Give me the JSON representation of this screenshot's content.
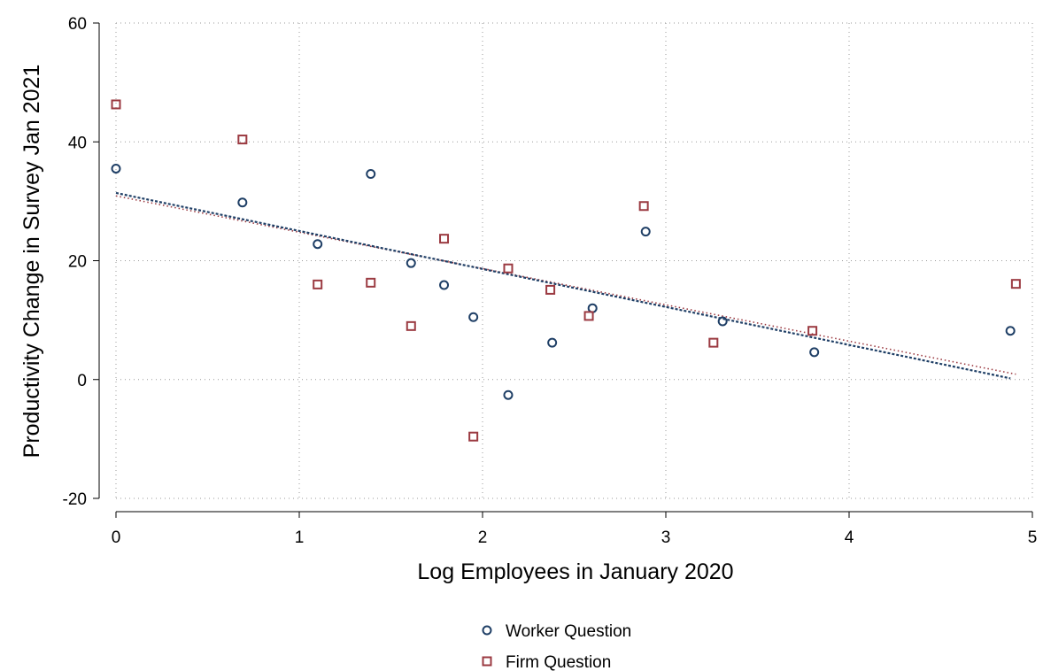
{
  "chart_data": {
    "type": "scatter",
    "title": "",
    "xlabel": "Log Employees in January 2020",
    "ylabel": "Productivity Change in Survey Jan 2021",
    "xlim": [
      0,
      5
    ],
    "ylim": [
      -20,
      60
    ],
    "xticks": [
      "0",
      "1",
      "2",
      "3",
      "4",
      "5"
    ],
    "yticks": [
      "-20",
      "0",
      "20",
      "40",
      "60"
    ],
    "grid": true,
    "legend_position": "bottom-center",
    "series": [
      {
        "name": "Worker Question",
        "marker": "circle",
        "color": "#1f3f66",
        "points": [
          {
            "x": 0.0,
            "y": 35.5
          },
          {
            "x": 0.69,
            "y": 29.8
          },
          {
            "x": 1.1,
            "y": 22.8
          },
          {
            "x": 1.39,
            "y": 34.6
          },
          {
            "x": 1.61,
            "y": 19.6
          },
          {
            "x": 1.79,
            "y": 15.9
          },
          {
            "x": 1.95,
            "y": 10.5
          },
          {
            "x": 2.14,
            "y": -2.6
          },
          {
            "x": 2.38,
            "y": 6.2
          },
          {
            "x": 2.6,
            "y": 12.0
          },
          {
            "x": 2.89,
            "y": 24.9
          },
          {
            "x": 3.31,
            "y": 9.8
          },
          {
            "x": 3.81,
            "y": 4.6
          },
          {
            "x": 4.88,
            "y": 8.2
          }
        ],
        "fit": {
          "x": [
            0.0,
            4.88
          ],
          "y": [
            31.4,
            0.2
          ]
        }
      },
      {
        "name": "Firm Question",
        "marker": "square",
        "color": "#9b3a41",
        "points": [
          {
            "x": 0.0,
            "y": 46.3
          },
          {
            "x": 0.69,
            "y": 40.4
          },
          {
            "x": 1.1,
            "y": 16.0
          },
          {
            "x": 1.39,
            "y": 16.3
          },
          {
            "x": 1.61,
            "y": 9.0
          },
          {
            "x": 1.79,
            "y": 23.7
          },
          {
            "x": 1.95,
            "y": -9.6
          },
          {
            "x": 2.14,
            "y": 18.7
          },
          {
            "x": 2.37,
            "y": 15.1
          },
          {
            "x": 2.58,
            "y": 10.7
          },
          {
            "x": 2.88,
            "y": 29.2
          },
          {
            "x": 3.26,
            "y": 6.2
          },
          {
            "x": 3.8,
            "y": 8.2
          },
          {
            "x": 4.91,
            "y": 16.1
          }
        ],
        "fit": {
          "x": [
            0.0,
            4.91
          ],
          "y": [
            30.9,
            0.9
          ]
        }
      }
    ]
  }
}
